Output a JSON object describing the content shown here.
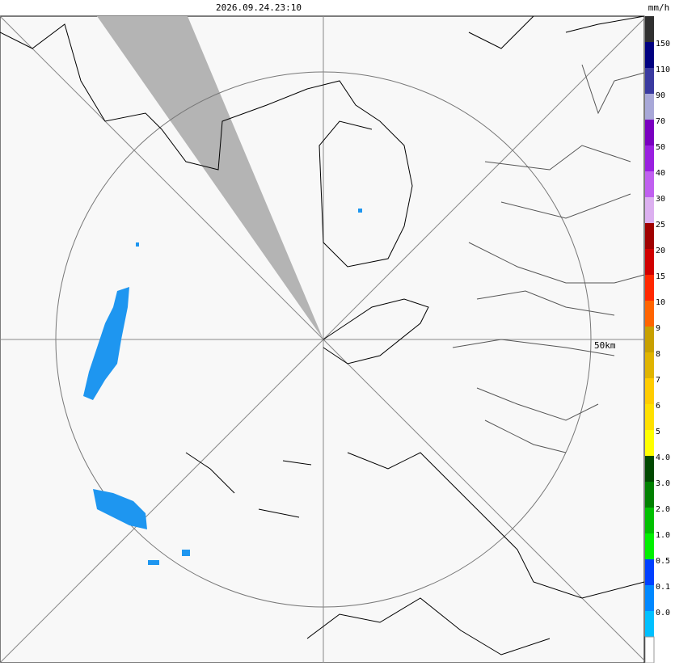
{
  "header": {
    "timestamp": "2026.09.24.23:10"
  },
  "map": {
    "range_label": "50km"
  },
  "legend": {
    "unit": "mm/h",
    "colors": [
      "#303030",
      "#000080",
      "#3a3aa0",
      "#a8a8d8",
      "#7a00c0",
      "#9a20e0",
      "#c060f0",
      "#dcb0f0",
      "#a00000",
      "#d00000",
      "#ff2800",
      "#ff6400",
      "#c8a000",
      "#e0b400",
      "#ffcc00",
      "#ffe000",
      "#ffff00",
      "#004800",
      "#008000",
      "#00c000",
      "#00f000",
      "#0040ff",
      "#0088ff",
      "#00c0ff",
      "#ffffff"
    ],
    "labels": [
      "150",
      "110",
      "90",
      "70",
      "50",
      "40",
      "30",
      "25",
      "20",
      "15",
      "10",
      "9",
      "8",
      "7",
      "6",
      "5",
      "4.0",
      "3.0",
      "2.0",
      "1.0",
      "0.5",
      "0.1",
      "0.0"
    ]
  }
}
